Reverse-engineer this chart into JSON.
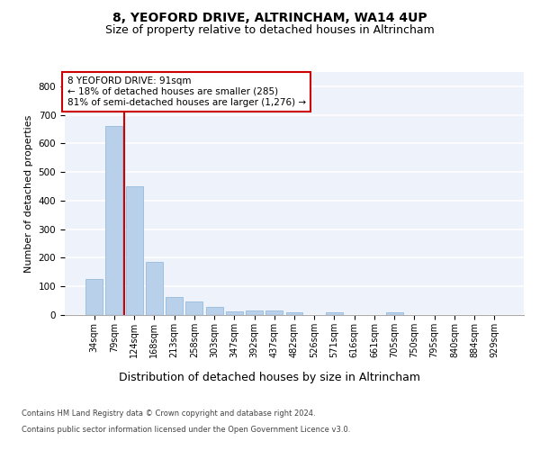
{
  "title1": "8, YEOFORD DRIVE, ALTRINCHAM, WA14 4UP",
  "title2": "Size of property relative to detached houses in Altrincham",
  "xlabel": "Distribution of detached houses by size in Altrincham",
  "ylabel": "Number of detached properties",
  "categories": [
    "34sqm",
    "79sqm",
    "124sqm",
    "168sqm",
    "213sqm",
    "258sqm",
    "303sqm",
    "347sqm",
    "392sqm",
    "437sqm",
    "482sqm",
    "526sqm",
    "571sqm",
    "616sqm",
    "661sqm",
    "705sqm",
    "750sqm",
    "795sqm",
    "840sqm",
    "884sqm",
    "929sqm"
  ],
  "values": [
    125,
    660,
    450,
    185,
    62,
    47,
    28,
    13,
    15,
    15,
    9,
    0,
    8,
    0,
    0,
    8,
    0,
    0,
    0,
    0,
    0
  ],
  "bar_color": "#b8d0ea",
  "bar_edgecolor": "#8ab4d8",
  "vline_x": 1.5,
  "vline_color": "#cc0000",
  "annotation_text": "8 YEOFORD DRIVE: 91sqm\n← 18% of detached houses are smaller (285)\n81% of semi-detached houses are larger (1,276) →",
  "annotation_box_color": "#ffffff",
  "annotation_box_edgecolor": "#cc0000",
  "ylim": [
    0,
    850
  ],
  "yticks": [
    0,
    100,
    200,
    300,
    400,
    500,
    600,
    700,
    800
  ],
  "footer_line1": "Contains HM Land Registry data © Crown copyright and database right 2024.",
  "footer_line2": "Contains public sector information licensed under the Open Government Licence v3.0.",
  "bg_color": "#eef2fa",
  "grid_color": "#ffffff",
  "title1_fontsize": 10,
  "title2_fontsize": 9,
  "tick_fontsize": 7,
  "ylabel_fontsize": 8,
  "xlabel_fontsize": 9,
  "annotation_fontsize": 7.5,
  "footer_fontsize": 6
}
